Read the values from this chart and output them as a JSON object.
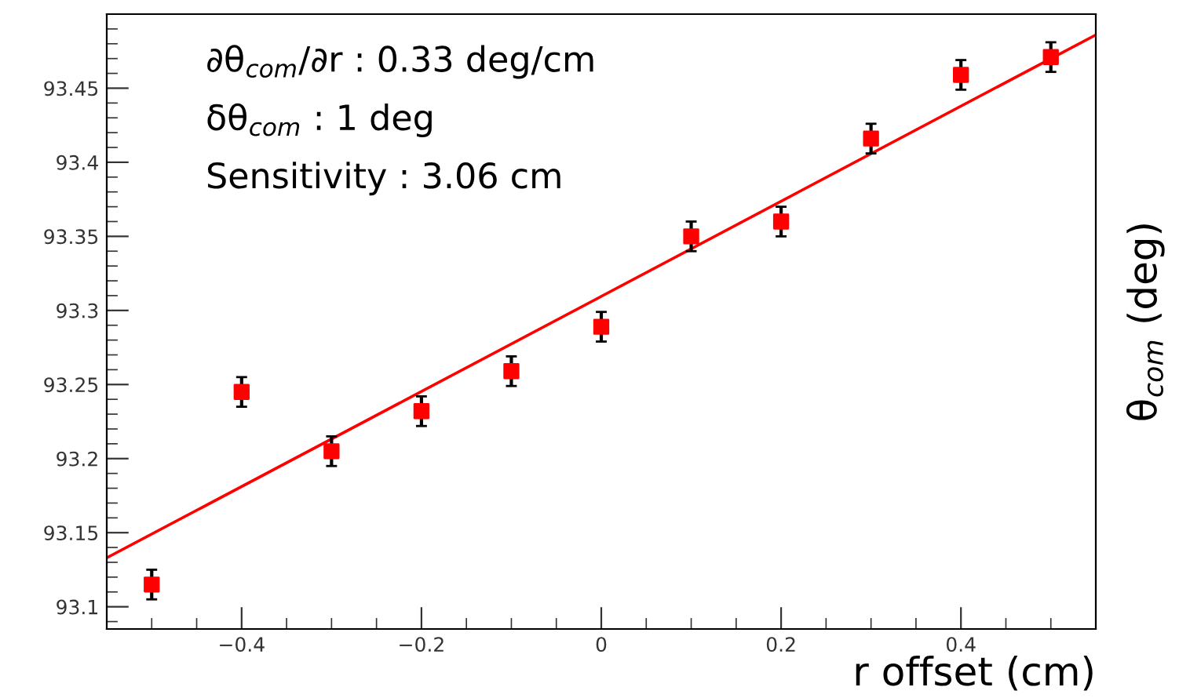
{
  "chart_data": {
    "type": "scatter",
    "xlabel": "r offset (cm)",
    "ylabel": "θ$_{com}$ (deg)",
    "annotations": [
      "∂θ$_{com}$/∂r : 0.33 deg/cm",
      "δθ$_{com}$ : 1 deg",
      "Sensitivity : 3.06 cm"
    ],
    "xlim": [
      -0.55,
      0.55
    ],
    "xticks": [
      {
        "value": -0.4,
        "label": "−0.4"
      },
      {
        "value": -0.2,
        "label": "−0.2"
      },
      0,
      0.2,
      0.4
    ],
    "ylim": [
      93.085,
      93.5
    ],
    "yticks": [
      93.1,
      93.15,
      93.2,
      93.25,
      93.3,
      93.35,
      93.4,
      93.45
    ],
    "grid": false,
    "series": [
      {
        "marker": "square",
        "color": "#ff0000",
        "x": [
          -0.5,
          -0.4,
          -0.3,
          -0.2,
          -0.1,
          0,
          0.1,
          0.2,
          0.3,
          0.4,
          0.5
        ],
        "values": [
          93.115,
          93.245,
          93.205,
          93.232,
          93.259,
          93.289,
          93.35,
          93.36,
          93.416,
          93.459,
          93.471
        ],
        "errors": [
          0.01,
          0.01,
          0.01,
          0.01,
          0.01,
          0.01,
          0.01,
          0.01,
          0.01,
          0.01,
          0.01
        ]
      },
      {
        "type": "line",
        "color": "#ff0000",
        "x": [
          -0.55,
          0.55
        ],
        "values": [
          93.133,
          93.486
        ]
      }
    ]
  }
}
